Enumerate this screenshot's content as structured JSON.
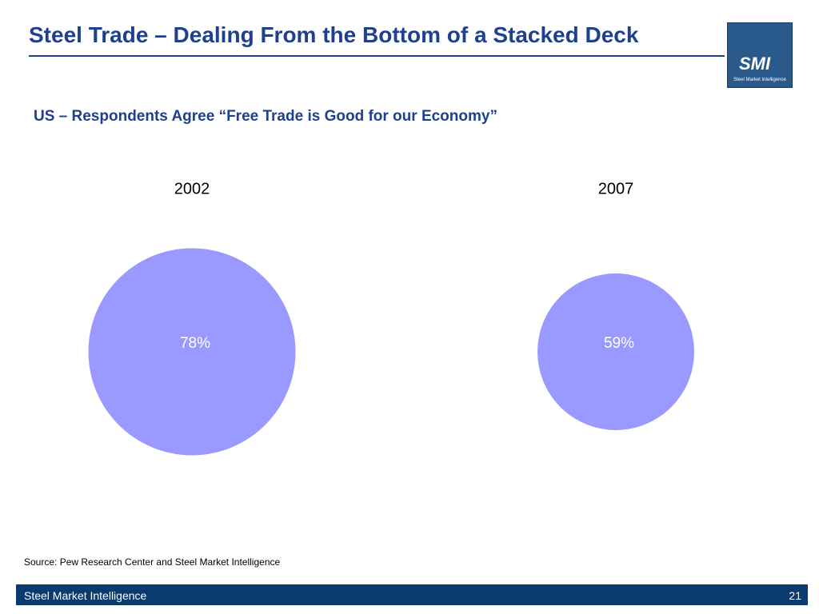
{
  "slide": {
    "title": "Steel Trade – Dealing From the Bottom of a Stacked Deck",
    "logo_text": "SMI",
    "logo_caption": "Steel Market Intelligence",
    "source": "Source: Pew Research Center and Steel Market Intelligence",
    "footer": "Steel Market Intelligence",
    "page_number": "21"
  },
  "chart_data": {
    "type": "bubble",
    "title": "US – Respondents Agree “Free Trade is Good for our Economy”",
    "categories": [
      "2002",
      "2007"
    ],
    "values": [
      78,
      59
    ],
    "value_labels": [
      "78%",
      "59%"
    ],
    "color": "#9999ff"
  }
}
